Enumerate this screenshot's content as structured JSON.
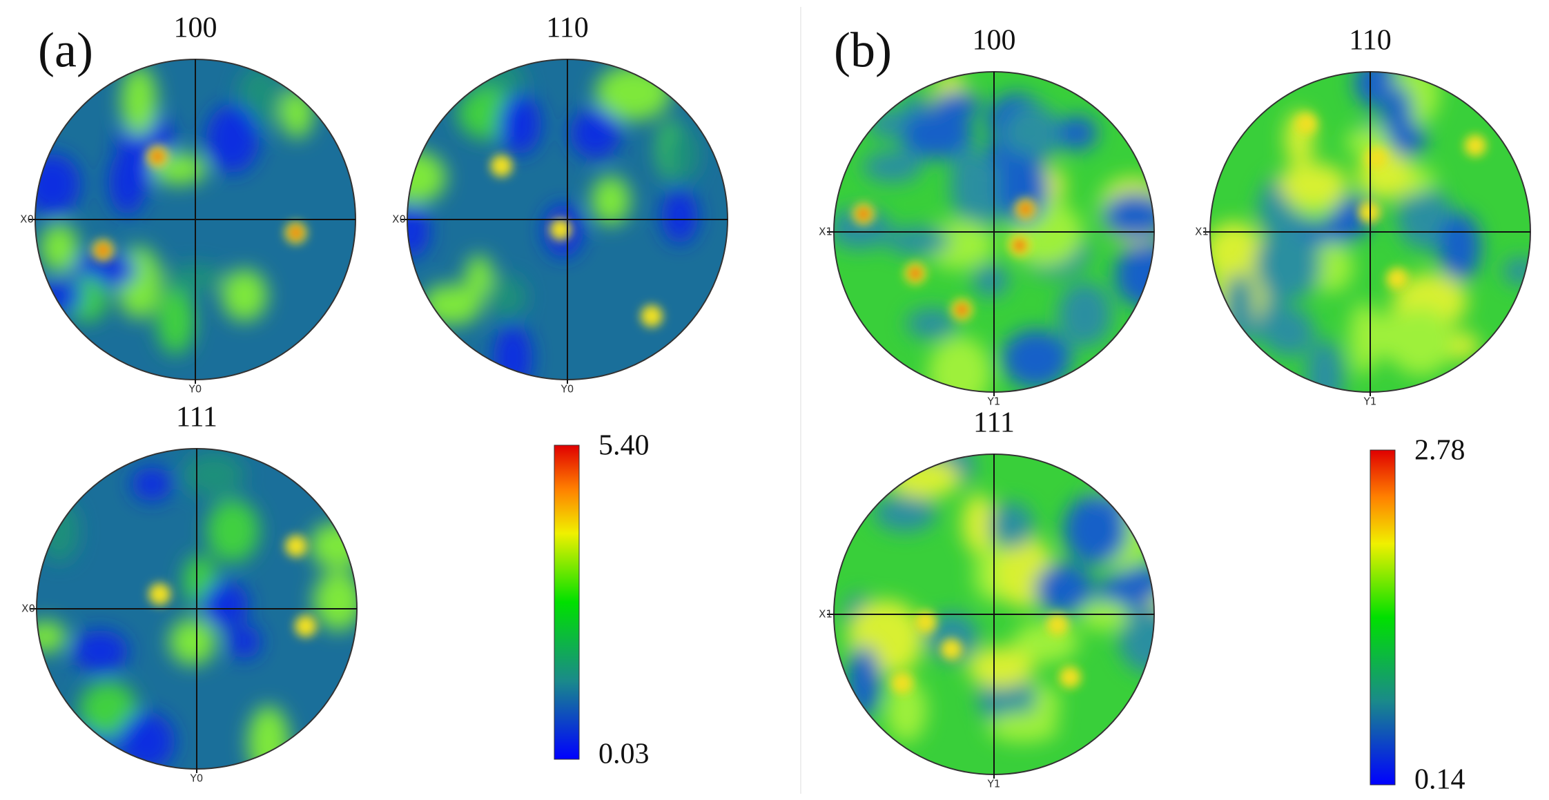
{
  "panels": [
    {
      "label": "(a)",
      "figures": [
        {
          "title": "100",
          "x_label": "X0",
          "y_label": "Y0"
        },
        {
          "title": "110",
          "x_label": "X0",
          "y_label": "Y0"
        },
        {
          "title": "111",
          "x_label": "X0",
          "y_label": "Y0"
        }
      ],
      "colorbar": {
        "max": "5.40",
        "min": "0.03"
      }
    },
    {
      "label": "(b)",
      "figures": [
        {
          "title": "100",
          "x_label": "X1",
          "y_label": "Y1"
        },
        {
          "title": "110",
          "x_label": "X1",
          "y_label": "Y1"
        },
        {
          "title": "111",
          "x_label": "X1",
          "y_label": "Y1"
        }
      ],
      "colorbar": {
        "max": "2.78",
        "min": "0.14"
      }
    }
  ]
}
